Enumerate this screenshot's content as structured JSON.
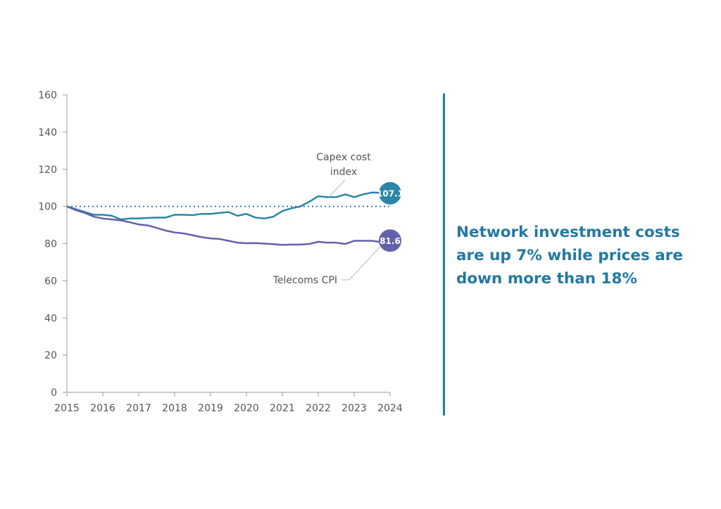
{
  "chart_data": {
    "type": "line",
    "title": "",
    "xlabel": "",
    "ylabel": "",
    "xlim": [
      2015,
      2024
    ],
    "ylim": [
      0,
      160
    ],
    "x_ticks": [
      "2015",
      "2016",
      "2017",
      "2018",
      "2019",
      "2020",
      "2021",
      "2022",
      "2023",
      "2024"
    ],
    "y_ticks": [
      "0",
      "20",
      "40",
      "60",
      "80",
      "100",
      "120",
      "140",
      "160"
    ],
    "grid": false,
    "reference_line": {
      "y": 100,
      "style": "dotted",
      "color": "#2a86a8"
    },
    "x": [
      2015,
      2015.25,
      2015.5,
      2015.75,
      2016,
      2016.25,
      2016.5,
      2016.75,
      2017,
      2017.25,
      2017.5,
      2017.75,
      2018,
      2018.25,
      2018.5,
      2018.75,
      2019,
      2019.25,
      2019.5,
      2019.75,
      2020,
      2020.25,
      2020.5,
      2020.75,
      2021,
      2021.25,
      2021.5,
      2021.75,
      2022,
      2022.25,
      2022.5,
      2022.75,
      2023,
      2023.25,
      2023.5,
      2023.75,
      2024
    ],
    "series": [
      {
        "name": "Capex cost index",
        "label_lines": [
          "Capex cost",
          "index"
        ],
        "color": "#2a86a8",
        "end_label": "107.1",
        "values": [
          100,
          98.5,
          97,
          95.5,
          95.5,
          95,
          93,
          93.5,
          93.5,
          93.8,
          94,
          94,
          95.5,
          95.5,
          95.3,
          96,
          96,
          96.5,
          97,
          95,
          96,
          94,
          93.5,
          94.5,
          97.5,
          99,
          100,
          102.5,
          105.5,
          105,
          105,
          106.5,
          105,
          106.5,
          107.5,
          107.3,
          107.1
        ]
      },
      {
        "name": "Telecoms CPI",
        "label_lines": [
          "Telecoms CPI"
        ],
        "color": "#6461ab",
        "end_label": "81.6",
        "values": [
          100,
          98,
          96.5,
          94.5,
          93.5,
          93,
          92.5,
          91.5,
          90.3,
          89.8,
          88.5,
          87,
          86,
          85.5,
          84.5,
          83.5,
          82.8,
          82.5,
          81.5,
          80.5,
          80.2,
          80.3,
          80,
          79.7,
          79.3,
          79.5,
          79.5,
          79.8,
          81,
          80.5,
          80.5,
          79.8,
          81.5,
          81.5,
          81.5,
          80.8,
          81.6
        ]
      }
    ]
  },
  "headline": {
    "lines": [
      "Network investment costs",
      "are up 7% while prices are",
      "down more than 18%"
    ],
    "color": "#2379a4"
  }
}
